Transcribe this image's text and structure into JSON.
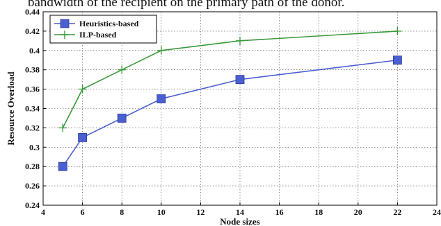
{
  "caption_fragment": "bandwidth of the recipient on the primary path of the donor.",
  "chart_data": {
    "type": "line",
    "title": "",
    "xlabel": "Node sizes",
    "ylabel": "Resource Overload",
    "xlim": [
      4,
      24
    ],
    "ylim": [
      0.24,
      0.44
    ],
    "xticks": [
      4,
      6,
      8,
      10,
      12,
      14,
      16,
      18,
      20,
      22,
      24
    ],
    "yticks": [
      0.24,
      0.26,
      0.28,
      0.3,
      0.32,
      0.34,
      0.36,
      0.38,
      0.4,
      0.42,
      0.44
    ],
    "xtick_labels": [
      "4",
      "6",
      "8",
      "10",
      "12",
      "14",
      "16",
      "18",
      "20",
      "22",
      "24"
    ],
    "ytick_labels": [
      "0.24",
      "0.26",
      "0.28",
      "0.3",
      "0.32",
      "0.34",
      "0.36",
      "0.38",
      "0.4",
      "0.42",
      "0.44"
    ],
    "grid": true,
    "legend_position": "top-left",
    "series": [
      {
        "name": "Heuristics-based",
        "color": "#4a5fd0",
        "marker": "square",
        "x": [
          5,
          6,
          8,
          10,
          14,
          22
        ],
        "y": [
          0.28,
          0.31,
          0.33,
          0.35,
          0.37,
          0.39
        ]
      },
      {
        "name": "ILP-based",
        "color": "#3a9a3a",
        "marker": "plus",
        "x": [
          5,
          6,
          8,
          10,
          14,
          22
        ],
        "y": [
          0.32,
          0.36,
          0.38,
          0.4,
          0.41,
          0.42
        ]
      }
    ]
  }
}
